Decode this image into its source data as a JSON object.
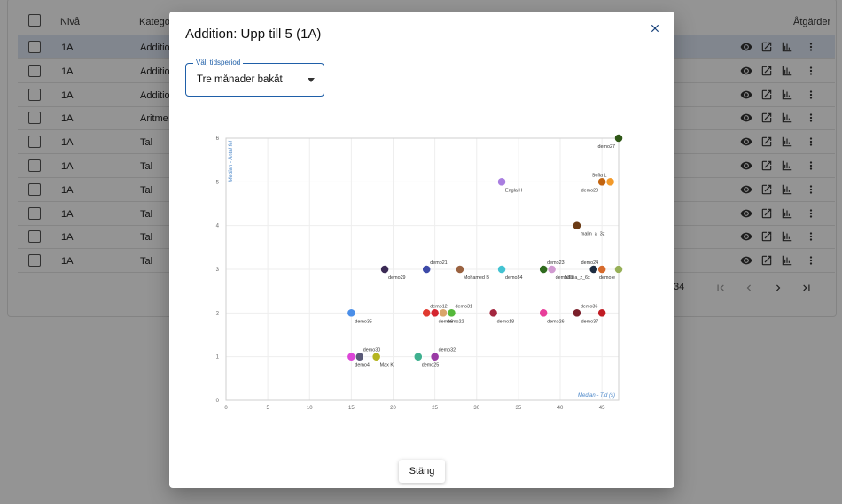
{
  "table": {
    "headers": {
      "level": "Nivå",
      "category": "Kategor",
      "actions": "Åtgärder"
    },
    "rows": [
      {
        "level": "1A",
        "category": "Additio",
        "selected": true
      },
      {
        "level": "1A",
        "category": "Additio",
        "selected": false
      },
      {
        "level": "1A",
        "category": "Additio",
        "selected": false
      },
      {
        "level": "1A",
        "category": "Aritme",
        "selected": false
      },
      {
        "level": "1A",
        "category": "Tal",
        "selected": false
      },
      {
        "level": "1A",
        "category": "Tal",
        "selected": false
      },
      {
        "level": "1A",
        "category": "Tal",
        "selected": false
      },
      {
        "level": "1A",
        "category": "Tal",
        "selected": false
      },
      {
        "level": "1A",
        "category": "Tal",
        "selected": false
      },
      {
        "level": "1A",
        "category": "Tal",
        "selected": false
      }
    ],
    "row_icons": [
      "eye-icon",
      "open-in-new-icon",
      "chart-icon",
      "more-vert-icon"
    ],
    "pager_text": "34"
  },
  "dialog": {
    "title": "Addition: Upp till 5 (1A)",
    "period": {
      "label": "Välj tidsperiod",
      "value": "Tre månader bakåt"
    },
    "close_button": "Stäng"
  },
  "chart_data": {
    "type": "scatter",
    "xlabel": "Median - Tid (s)",
    "ylabel": "Median - Antal fel",
    "xlim": [
      0,
      47
    ],
    "ylim": [
      0,
      6
    ],
    "xticks": [
      0,
      5,
      10,
      15,
      20,
      25,
      30,
      35,
      40,
      45
    ],
    "yticks": [
      0,
      1,
      2,
      3,
      4,
      5,
      6
    ],
    "grid": true,
    "points": [
      {
        "label": "demo27",
        "x": 47,
        "y": 6,
        "color": "#2e5716"
      },
      {
        "label": "Engla H",
        "x": 33,
        "y": 5,
        "color": "#a97ee0"
      },
      {
        "label": "demo20",
        "x": 45,
        "y": 5,
        "color": "#c2640f"
      },
      {
        "label": "Sofia L",
        "x": 46,
        "y": 5,
        "color": "#f39a2a"
      },
      {
        "label": "malin_a_3z",
        "x": 42,
        "y": 4,
        "color": "#6a3a14"
      },
      {
        "label": "demo29",
        "x": 19,
        "y": 3,
        "color": "#3b2a55"
      },
      {
        "label": "demo21",
        "x": 24,
        "y": 3,
        "color": "#3d4aa8"
      },
      {
        "label": "Mohamed B",
        "x": 28,
        "y": 3,
        "color": "#9a6240"
      },
      {
        "label": "demo34",
        "x": 33,
        "y": 3,
        "color": "#43c3d2"
      },
      {
        "label": "demo23",
        "x": 38,
        "y": 3,
        "color": "#2f6b1e"
      },
      {
        "label": "demo33",
        "x": 39,
        "y": 3,
        "color": "#d19ad1"
      },
      {
        "label": "felicia_z_6x",
        "x": 44,
        "y": 3,
        "color": "#1d2c40"
      },
      {
        "label": "demo24",
        "x": 45,
        "y": 3,
        "color": "#d66a2c"
      },
      {
        "label": "demo e",
        "x": 47,
        "y": 3,
        "color": "#97b058"
      },
      {
        "label": "demo35",
        "x": 15,
        "y": 2,
        "color": "#4a8ee8"
      },
      {
        "label": "demo12",
        "x": 24,
        "y": 2,
        "color": "#e03a30"
      },
      {
        "label": "demo6",
        "x": 25,
        "y": 2,
        "color": "#d4252f"
      },
      {
        "label": "demo22",
        "x": 26,
        "y": 2,
        "color": "#d9a56a"
      },
      {
        "label": "demo31",
        "x": 27,
        "y": 2,
        "color": "#55b83a"
      },
      {
        "label": "demo18",
        "x": 32,
        "y": 2,
        "color": "#a3263f"
      },
      {
        "label": "demo26",
        "x": 38,
        "y": 2,
        "color": "#e83e9a"
      },
      {
        "label": "demo36",
        "x": 42,
        "y": 2,
        "color": "#7a1f2a"
      },
      {
        "label": "demo37",
        "x": 45,
        "y": 2,
        "color": "#c01c24"
      },
      {
        "label": "demo4",
        "x": 15,
        "y": 1,
        "color": "#dd45d8"
      },
      {
        "label": "demo30",
        "x": 16,
        "y": 1,
        "color": "#5a5a78"
      },
      {
        "label": "Max K",
        "x": 18,
        "y": 1,
        "color": "#b5b51f"
      },
      {
        "label": "demo25",
        "x": 23,
        "y": 1,
        "color": "#3fb08f"
      },
      {
        "label": "demo32",
        "x": 25,
        "y": 1,
        "color": "#9a3aa5"
      }
    ]
  }
}
